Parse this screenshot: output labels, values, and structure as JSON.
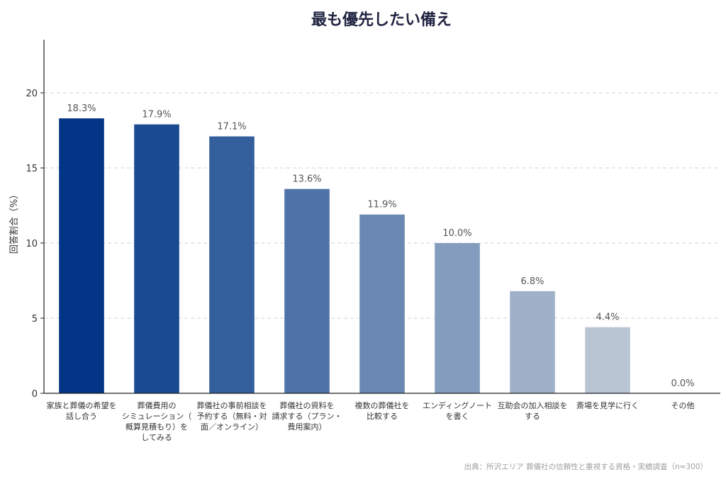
{
  "chart_data": {
    "type": "bar",
    "title": "最も優先したい備え",
    "xlabel": "",
    "ylabel": "回答割合（%）",
    "ylim": [
      0,
      23.5
    ],
    "yticks": [
      0,
      5,
      10,
      15,
      20
    ],
    "grid": true,
    "categories": [
      [
        "家族と葬儀の希望を",
        "話し合う"
      ],
      [
        "葬儀費用の",
        "シミュレーション（",
        "概算見積もり）を",
        "してみる"
      ],
      [
        "葬儀社の事前相談を",
        "予約する（無料・対",
        "面／オンライン）"
      ],
      [
        "葬儀社の資料を",
        "請求する（プラン・",
        "費用案内）"
      ],
      [
        "複数の葬儀社を",
        "比較する"
      ],
      [
        "エンディングノート",
        "を書く"
      ],
      [
        "互助会の加入相談を",
        "する"
      ],
      [
        "斎場を見学に行く"
      ],
      [
        "その他"
      ]
    ],
    "values": [
      18.3,
      17.9,
      17.1,
      13.6,
      11.9,
      10.0,
      6.8,
      4.4,
      0.0
    ],
    "value_labels": [
      "18.3%",
      "17.9%",
      "17.1%",
      "13.6%",
      "11.9%",
      "10.0%",
      "6.8%",
      "4.4%",
      "0.0%"
    ],
    "colors": [
      "#023585",
      "#1a4b91",
      "#345f9d",
      "#4f73a9",
      "#6a88b3",
      "#849dbe",
      "#9fb1c8",
      "#b9c5d3",
      "#d3dbe2"
    ]
  },
  "source_note": "出典：所沢エリア 葬儀社の信頼性と重視する資格・実績調査（n=300）"
}
